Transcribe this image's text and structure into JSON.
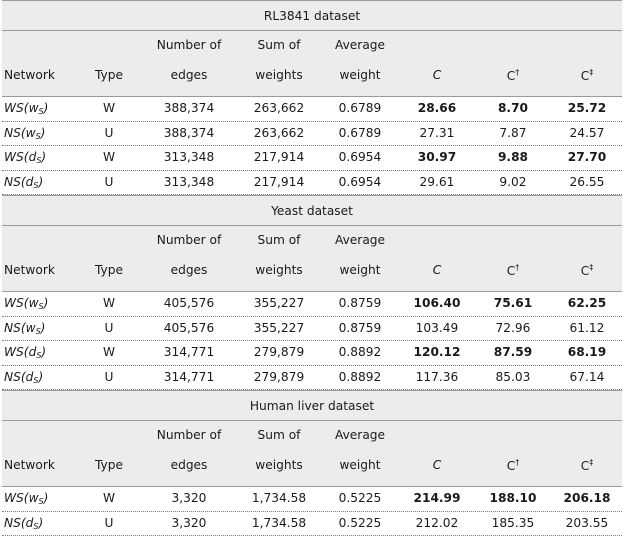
{
  "columns": {
    "network": "Network",
    "type": "Type",
    "edges_l1": "Number of",
    "edges_l2": "edges",
    "sum_l1": "Sum of",
    "sum_l2": "weights",
    "avg_l1": "Average",
    "avg_l2": "weight",
    "c": "C",
    "c_dagger": "C",
    "c_dagger_mark": "†",
    "c_ddagger": "C",
    "c_ddagger_mark": "‡"
  },
  "sections": [
    {
      "title": "RL3841 dataset",
      "rows": [
        {
          "net_prefix": "WS",
          "net_sub": "S",
          "net_arg": "w",
          "type": "W",
          "edges": "388,374",
          "sum": "263,662",
          "avg": "0.6789",
          "c": "28.66",
          "cd": "8.70",
          "cdd": "25.72",
          "bold": true
        },
        {
          "net_prefix": "NS",
          "net_sub": "S",
          "net_arg": "w",
          "type": "U",
          "edges": "388,374",
          "sum": "263,662",
          "avg": "0.6789",
          "c": "27.31",
          "cd": "7.87",
          "cdd": "24.57",
          "bold": false
        },
        {
          "net_prefix": "WS",
          "net_sub": "S",
          "net_arg": "d",
          "type": "W",
          "edges": "313,348",
          "sum": "217,914",
          "avg": "0.6954",
          "c": "30.97",
          "cd": "9.88",
          "cdd": "27.70",
          "bold": true
        },
        {
          "net_prefix": "NS",
          "net_sub": "S",
          "net_arg": "d",
          "type": "U",
          "edges": "313,348",
          "sum": "217,914",
          "avg": "0.6954",
          "c": "29.61",
          "cd": "9.02",
          "cdd": "26.55",
          "bold": false
        }
      ]
    },
    {
      "title": "Yeast dataset",
      "rows": [
        {
          "net_prefix": "WS",
          "net_sub": "S",
          "net_arg": "w",
          "type": "W",
          "edges": "405,576",
          "sum": "355,227",
          "avg": "0.8759",
          "c": "106.40",
          "cd": "75.61",
          "cdd": "62.25",
          "bold": true
        },
        {
          "net_prefix": "NS",
          "net_sub": "S",
          "net_arg": "w",
          "type": "U",
          "edges": "405,576",
          "sum": "355,227",
          "avg": "0.8759",
          "c": "103.49",
          "cd": "72.96",
          "cdd": "61.12",
          "bold": false
        },
        {
          "net_prefix": "WS",
          "net_sub": "S",
          "net_arg": "d",
          "type": "W",
          "edges": "314,771",
          "sum": "279,879",
          "avg": "0.8892",
          "c": "120.12",
          "cd": "87.59",
          "cdd": "68.19",
          "bold": true
        },
        {
          "net_prefix": "NS",
          "net_sub": "S",
          "net_arg": "d",
          "type": "U",
          "edges": "314,771",
          "sum": "279,879",
          "avg": "0.8892",
          "c": "117.36",
          "cd": "85.03",
          "cdd": "67.14",
          "bold": false
        }
      ]
    },
    {
      "title": "Human liver dataset",
      "rows": [
        {
          "net_prefix": "WS",
          "net_sub": "S",
          "net_arg": "w",
          "type": "W",
          "edges": "3,320",
          "sum": "1,734.58",
          "avg": "0.5225",
          "c": "214.99",
          "cd": "188.10",
          "cdd": "206.18",
          "bold": true
        },
        {
          "net_prefix": "NS",
          "net_sub": "S",
          "net_arg": "d",
          "type": "U",
          "edges": "3,320",
          "sum": "1,734.58",
          "avg": "0.5225",
          "c": "212.02",
          "cd": "185.35",
          "cdd": "203.55",
          "bold": false
        }
      ]
    }
  ]
}
